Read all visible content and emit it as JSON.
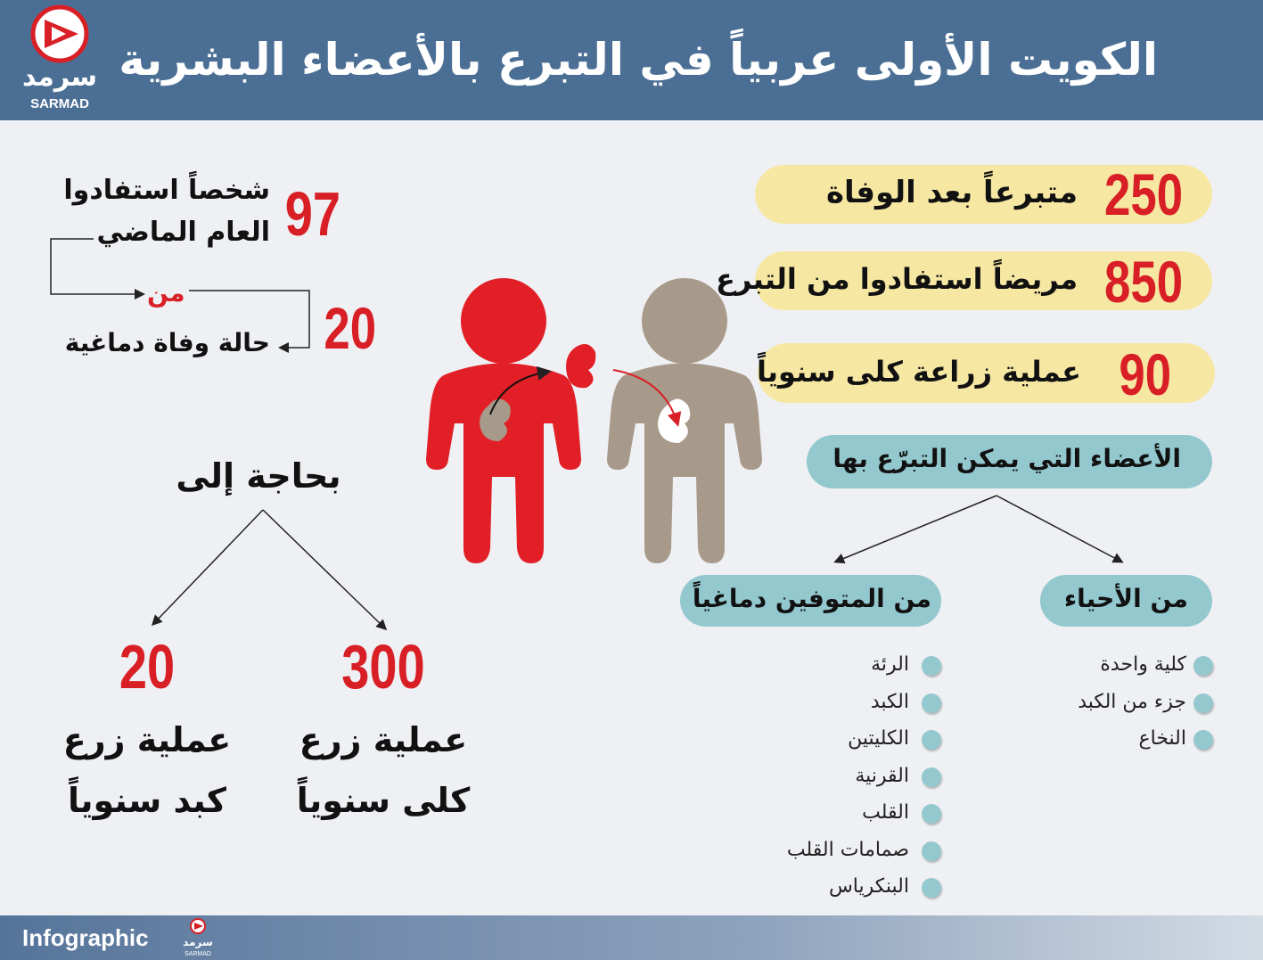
{
  "header": {
    "title": "الكويت الأولى عربياً في التبرع بالأعضاء البشرية",
    "logo_text": "سرمد",
    "logo_latin": "SARMAD"
  },
  "stats": [
    {
      "number": 250,
      "label": "متبرعاً بعد الوفاة"
    },
    {
      "number": 850,
      "label": "مريضاً استفادوا من التبرع"
    },
    {
      "number": 90,
      "label": "عملية زراعة كلى سنوياً"
    }
  ],
  "beneficiaries": {
    "number": 97,
    "lines": [
      "شخصاً استفادوا",
      "العام الماضي"
    ],
    "connector": "من",
    "source_number": 20,
    "source_label": "حالة وفاة دماغية"
  },
  "needs": {
    "title": "بحاجة إلى",
    "items": [
      {
        "number": 300,
        "lines": [
          "عملية زرع",
          "كلى سنوياً"
        ]
      },
      {
        "number": 20,
        "lines": [
          "عملية زرع",
          "كبد سنوياً"
        ]
      }
    ]
  },
  "organs": {
    "title": "الأعضاء التي يمكن التبرّع بها",
    "living": {
      "title": "من الأحياء",
      "items": [
        "كلية واحدة",
        "جزء من الكبد",
        "النخاع"
      ]
    },
    "deceased": {
      "title": "من المتوفين دماغياً",
      "items": [
        "الرئة",
        "الكبد",
        "الكليتين",
        "القرنية",
        "القلب",
        "صمامات القلب",
        "البنكرياس"
      ]
    }
  },
  "footer": {
    "label": "Infographic",
    "logo_text": "سرمد",
    "logo_latin": "SARMAD"
  }
}
